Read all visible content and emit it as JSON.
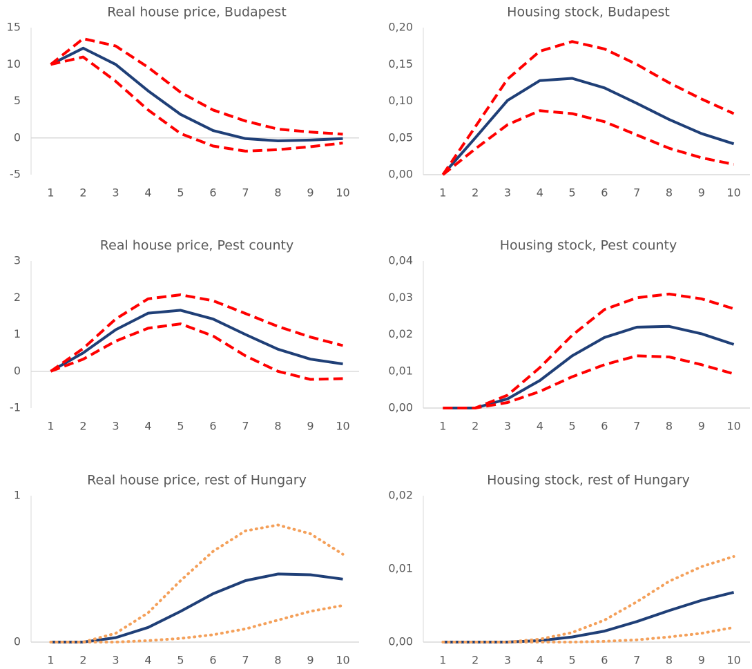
{
  "chart_data": [
    {
      "type": "line",
      "title": "Real house price, Budapest",
      "categories": [
        1,
        2,
        3,
        4,
        5,
        6,
        7,
        8,
        9,
        10
      ],
      "ylim": [
        -5,
        15
      ],
      "yticks": [
        -5,
        0,
        5,
        10,
        15
      ],
      "series": [
        {
          "color": "#1f3f77",
          "style": "solid",
          "values": [
            10,
            12.2,
            10,
            6.4,
            3.2,
            1.0,
            -0.1,
            -0.4,
            -0.3,
            -0.1
          ]
        },
        {
          "color": "#ff0000",
          "style": "dashed",
          "values": [
            10,
            13.5,
            12.5,
            9.6,
            6.2,
            3.8,
            2.3,
            1.2,
            0.8,
            0.5
          ]
        },
        {
          "color": "#ff0000",
          "style": "dashed",
          "values": [
            10,
            11,
            7.7,
            3.8,
            0.6,
            -1.1,
            -1.8,
            -1.6,
            -1.2,
            -0.7
          ]
        }
      ]
    },
    {
      "type": "line",
      "title": "Housing stock, Budapest",
      "categories": [
        1,
        2,
        3,
        4,
        5,
        6,
        7,
        8,
        9,
        10
      ],
      "ylim": [
        0,
        0.2
      ],
      "yticks": [
        {
          "value": 0,
          "label": "0,00"
        },
        {
          "value": 0.05,
          "label": "0,05"
        },
        {
          "value": 0.1,
          "label": "0,10"
        },
        {
          "value": 0.15,
          "label": "0,15"
        },
        {
          "value": 0.2,
          "label": "0,20"
        }
      ],
      "series": [
        {
          "color": "#1f3f77",
          "style": "solid",
          "values": [
            0,
            0.05,
            0.101,
            0.128,
            0.131,
            0.118,
            0.097,
            0.075,
            0.056,
            0.042
          ]
        },
        {
          "color": "#ff0000",
          "style": "dashed",
          "values": [
            0,
            0.065,
            0.13,
            0.168,
            0.181,
            0.171,
            0.15,
            0.125,
            0.103,
            0.083
          ]
        },
        {
          "color": "#ff0000",
          "style": "dashed",
          "values": [
            0,
            0.035,
            0.068,
            0.087,
            0.083,
            0.072,
            0.054,
            0.036,
            0.023,
            0.014
          ]
        }
      ]
    },
    {
      "type": "line",
      "title": "Real house price, Pest county",
      "categories": [
        1,
        2,
        3,
        4,
        5,
        6,
        7,
        8,
        9,
        10
      ],
      "ylim": [
        -1,
        3
      ],
      "yticks": [
        -1,
        0,
        1,
        2,
        3
      ],
      "series": [
        {
          "color": "#1f3f77",
          "style": "solid",
          "values": [
            0,
            0.5,
            1.13,
            1.58,
            1.66,
            1.42,
            1.0,
            0.6,
            0.33,
            0.2
          ]
        },
        {
          "color": "#ff0000",
          "style": "dashed",
          "values": [
            0,
            0.62,
            1.42,
            1.97,
            2.08,
            1.92,
            1.57,
            1.22,
            0.93,
            0.7
          ]
        },
        {
          "color": "#ff0000",
          "style": "dashed",
          "values": [
            0,
            0.33,
            0.82,
            1.17,
            1.29,
            0.96,
            0.42,
            0.0,
            -0.22,
            -0.2
          ]
        }
      ]
    },
    {
      "type": "line",
      "title": "Housing stock, Pest county",
      "categories": [
        1,
        2,
        3,
        4,
        5,
        6,
        7,
        8,
        9,
        10
      ],
      "ylim": [
        0,
        0.04
      ],
      "yticks": [
        {
          "value": 0,
          "label": "0,00"
        },
        {
          "value": 0.01,
          "label": "0,01"
        },
        {
          "value": 0.02,
          "label": "0,02"
        },
        {
          "value": 0.03,
          "label": "0,03"
        },
        {
          "value": 0.04,
          "label": "0,04"
        }
      ],
      "series": [
        {
          "color": "#1f3f77",
          "style": "solid",
          "values": [
            0,
            0,
            0.0025,
            0.0075,
            0.0142,
            0.0192,
            0.022,
            0.0222,
            0.0202,
            0.0173
          ]
        },
        {
          "color": "#ff0000",
          "style": "dashed",
          "values": [
            0,
            0,
            0.0035,
            0.011,
            0.0198,
            0.0268,
            0.03,
            0.031,
            0.0297,
            0.027
          ]
        },
        {
          "color": "#ff0000",
          "style": "dashed",
          "values": [
            0,
            0,
            0.0015,
            0.0045,
            0.0085,
            0.0118,
            0.0142,
            0.0139,
            0.0118,
            0.0093
          ]
        }
      ]
    },
    {
      "type": "line",
      "title": "Real house price, rest of Hungary",
      "categories": [
        1,
        2,
        3,
        4,
        5,
        6,
        7,
        8,
        9,
        10
      ],
      "ylim": [
        0,
        1
      ],
      "yticks": [
        0,
        1
      ],
      "series": [
        {
          "color": "#1f3f77",
          "style": "solid",
          "values": [
            0,
            0,
            0.03,
            0.1,
            0.21,
            0.33,
            0.42,
            0.465,
            0.46,
            0.43
          ]
        },
        {
          "color": "#f4a05a",
          "style": "dotted",
          "values": [
            0,
            0,
            0.06,
            0.2,
            0.42,
            0.62,
            0.76,
            0.8,
            0.74,
            0.6
          ]
        },
        {
          "color": "#f4a05a",
          "style": "dotted",
          "values": [
            0,
            0,
            0,
            0.01,
            0.025,
            0.05,
            0.09,
            0.15,
            0.21,
            0.25
          ]
        }
      ]
    },
    {
      "type": "line",
      "title": "Housing stock, rest of Hungary",
      "categories": [
        1,
        2,
        3,
        4,
        5,
        6,
        7,
        8,
        9,
        10
      ],
      "ylim": [
        0,
        0.02
      ],
      "yticks": [
        {
          "value": 0,
          "label": "0,00"
        },
        {
          "value": 0.01,
          "label": "0,01"
        },
        {
          "value": 0.02,
          "label": "0,02"
        }
      ],
      "series": [
        {
          "color": "#1f3f77",
          "style": "solid",
          "values": [
            0,
            0,
            0,
            0.0002,
            0.0007,
            0.0015,
            0.0028,
            0.0043,
            0.0057,
            0.0068
          ]
        },
        {
          "color": "#f4a05a",
          "style": "dotted",
          "values": [
            0,
            0,
            0,
            0.0004,
            0.0013,
            0.003,
            0.0055,
            0.0083,
            0.0103,
            0.0117
          ]
        },
        {
          "color": "#f4a05a",
          "style": "dotted",
          "values": [
            0,
            0,
            0,
            0,
            0,
            0.0001,
            0.0003,
            0.0007,
            0.0012,
            0.002
          ]
        }
      ]
    }
  ]
}
